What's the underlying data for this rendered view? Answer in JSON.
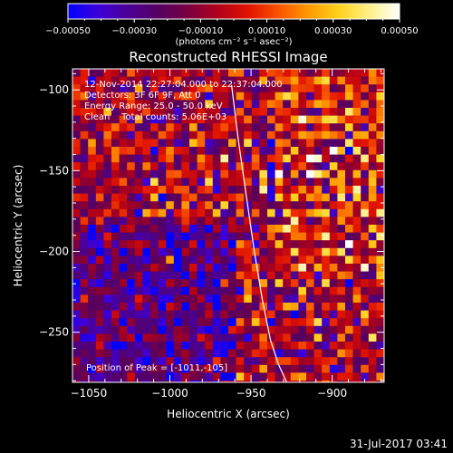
{
  "chart_data": {
    "type": "heatmap",
    "title": "Reconstructed RHESSI Image",
    "xlabel": "Heliocentric X (arcsec)",
    "ylabel": "Heliocentric Y (arcsec)",
    "xlim": [
      -1060,
      -868
    ],
    "ylim": [
      -281,
      -87
    ],
    "xticks": [
      -1050,
      -1000,
      -950,
      -900
    ],
    "yticks": [
      -100,
      -150,
      -200,
      -250
    ],
    "xtick_labels": [
      "−1050",
      "−1000",
      "−950",
      "−900"
    ],
    "ytick_labels": [
      "−100",
      "−150",
      "−200",
      "−250"
    ],
    "colorbar": {
      "min": -0.0005,
      "max": 0.0005,
      "ticks": [
        -0.0005,
        -0.0003,
        -0.0001,
        0.0001,
        0.0003,
        0.0005
      ],
      "tick_labels": [
        "−0.00050",
        "−0.00030",
        "−0.00010",
        "0.00010",
        "0.00030",
        "0.00050"
      ],
      "unit_label": "(photons cm⁻² s⁻¹ asec⁻²)",
      "colors": [
        "#0000ff",
        "#3e00d8",
        "#4b0094",
        "#550062",
        "#7a0040",
        "#b20018",
        "#e21400",
        "#f85400",
        "#ff9a00",
        "#ffd21e",
        "#fff088",
        "#ffffff"
      ]
    },
    "info_lines": [
      "12-Nov-2014 22:27:04.000 to 22:37:04.000",
      "Detectors: 3F 6F 9F, Att 0",
      "Energy Range: 25.0 - 50.0 keV",
      "Clean    Total counts: 5.06E+03"
    ],
    "peak_label": "Position of Peak = [-1011,-105]",
    "peak_position": [
      -1011,
      -105
    ],
    "limb_curve": {
      "x": [
        -962,
        -958,
        -953,
        -948,
        -943,
        -938,
        -933,
        -928
      ],
      "y": [
        -97,
        -130,
        -165,
        -200,
        -230,
        -255,
        -270,
        -281
      ]
    },
    "grid": false,
    "legend": "none"
  },
  "footer": {
    "timestamp": "31-Jul-2017 03:41"
  }
}
